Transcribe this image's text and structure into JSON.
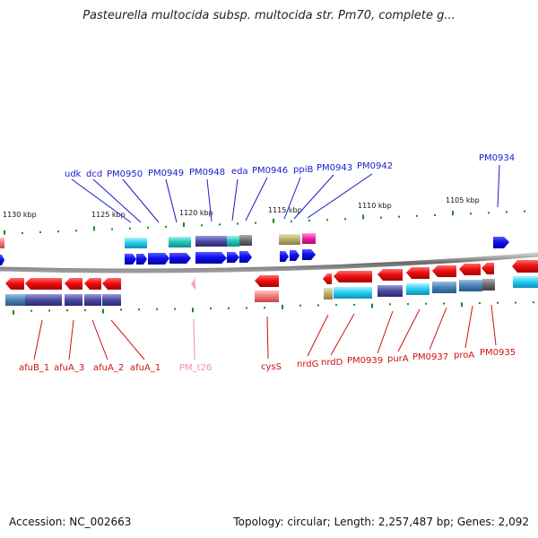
{
  "title": "Pasteurella multocida subsp. multocida str. Pm70, complete g...",
  "footer": {
    "accession": "Accession: NC_002663",
    "topology": "Topology: circular; Length: 2,257,487 bp; Genes: 2,092"
  },
  "colors": {
    "forward_label": "#1a1acc",
    "reverse_label": "#cc1111",
    "rna_label": "#f08ac0",
    "gene_forward": "#0a0aee",
    "gene_reverse": "#ee0a0a",
    "backbone": "#888888",
    "tick": "#1a8a1a"
  },
  "scale_labels": [
    {
      "text": "1130 kbp"
    },
    {
      "text": "1125 kbp"
    },
    {
      "text": "1120 kbp"
    },
    {
      "text": "1115 kbp"
    },
    {
      "text": "1110 kbp"
    },
    {
      "text": "1105 kbp"
    }
  ],
  "forward_genes": [
    {
      "label": "udk"
    },
    {
      "label": "dcd"
    },
    {
      "label": "PM0950"
    },
    {
      "label": "PM0949"
    },
    {
      "label": "PM0948"
    },
    {
      "label": "eda"
    },
    {
      "label": "PM0946"
    },
    {
      "label": "ppiB"
    },
    {
      "label": "PM0943"
    },
    {
      "label": "PM0942"
    },
    {
      "label": "PM0934"
    }
  ],
  "reverse_genes": [
    {
      "label": "afuB_1"
    },
    {
      "label": "afuA_3"
    },
    {
      "label": "afuA_2"
    },
    {
      "label": "afuA_1"
    },
    {
      "label": "PM_t26"
    },
    {
      "label": "cysS"
    },
    {
      "label": "nrdG"
    },
    {
      "label": "nrdD"
    },
    {
      "label": "PM0939"
    },
    {
      "label": "purA"
    },
    {
      "label": "PM0937"
    },
    {
      "label": "proA"
    },
    {
      "label": "PM0935"
    }
  ]
}
